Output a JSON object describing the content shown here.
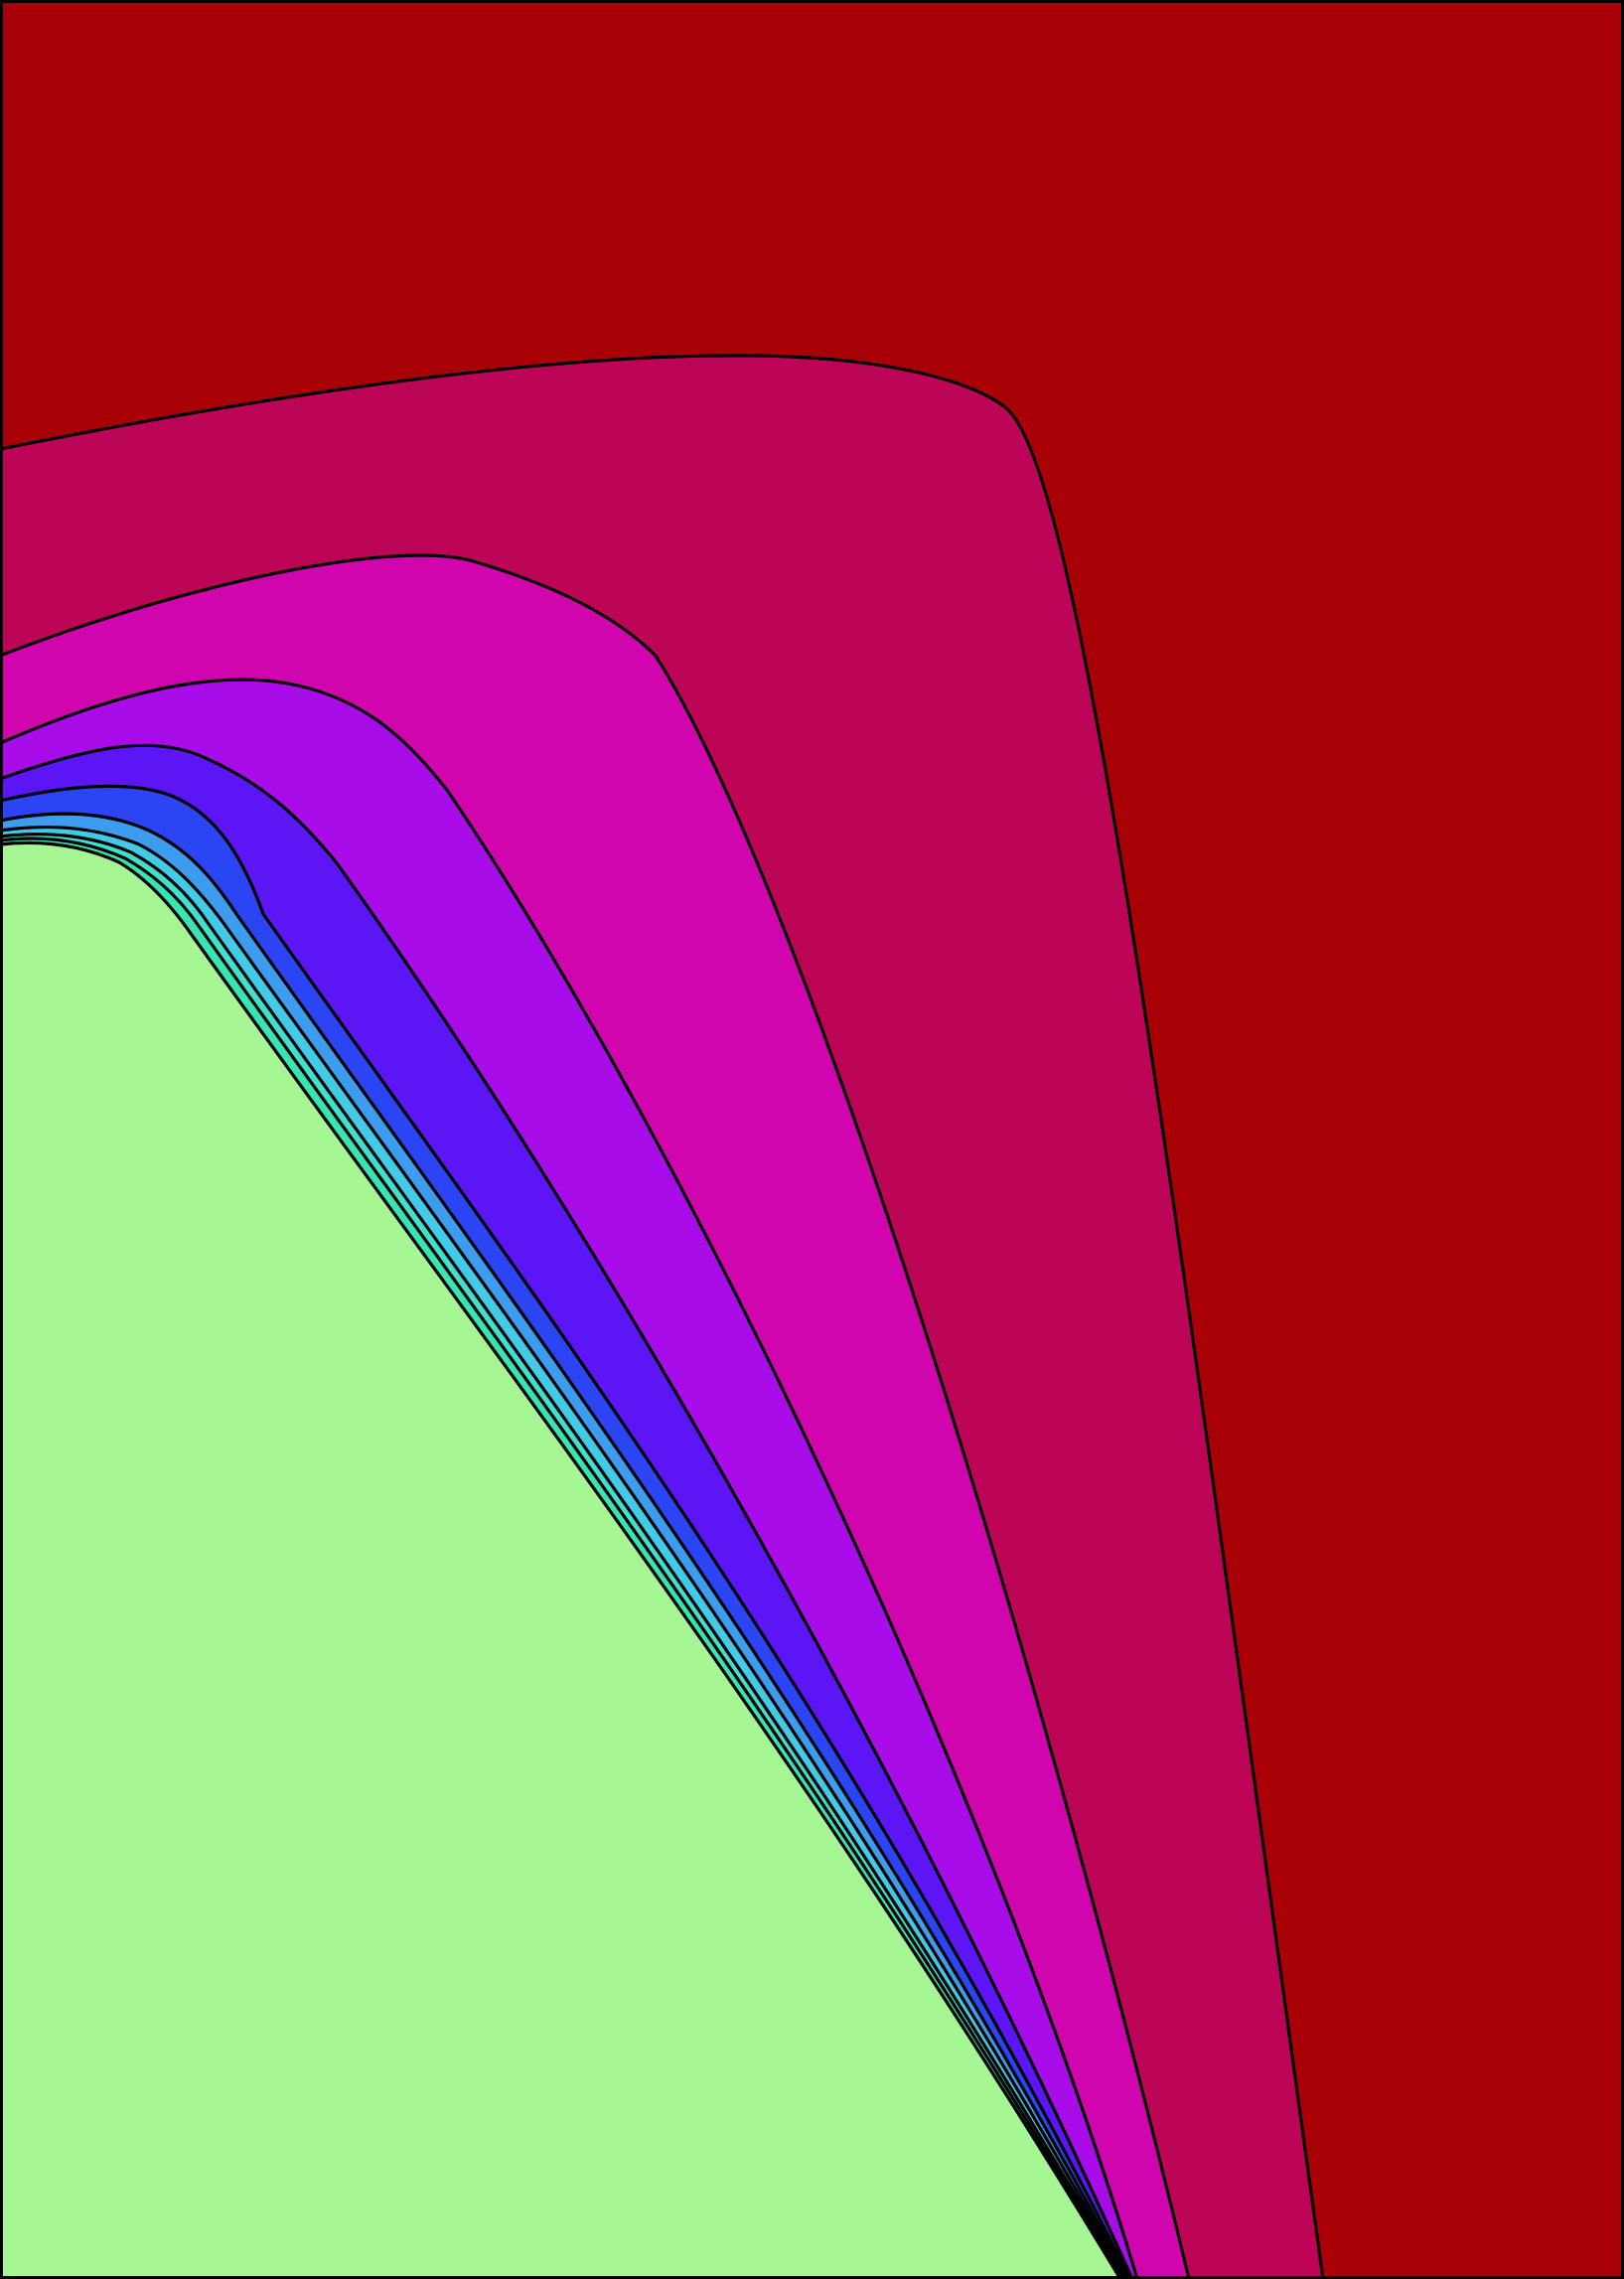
{
  "chart_data": {
    "type": "contour",
    "title": "",
    "xlabel": "",
    "ylabel": "",
    "axes_visible": false,
    "grid": false,
    "legend": "none",
    "levels": [
      {
        "level": 0,
        "color": "#a80006"
      },
      {
        "level": 1,
        "color": "#bd0557"
      },
      {
        "level": 2,
        "color": "#d005ae"
      },
      {
        "level": 3,
        "color": "#a80ce8"
      },
      {
        "level": 4,
        "color": "#5c16f5"
      },
      {
        "level": 5,
        "color": "#2b44f4"
      },
      {
        "level": 6,
        "color": "#3b9cf0"
      },
      {
        "level": 7,
        "color": "#42cbe8"
      },
      {
        "level": 8,
        "color": "#3ee0cf"
      },
      {
        "level": 9,
        "color": "#36e6b2"
      },
      {
        "level": 10,
        "color": "#a6f794"
      }
    ],
    "background_color": "#a80006"
  }
}
